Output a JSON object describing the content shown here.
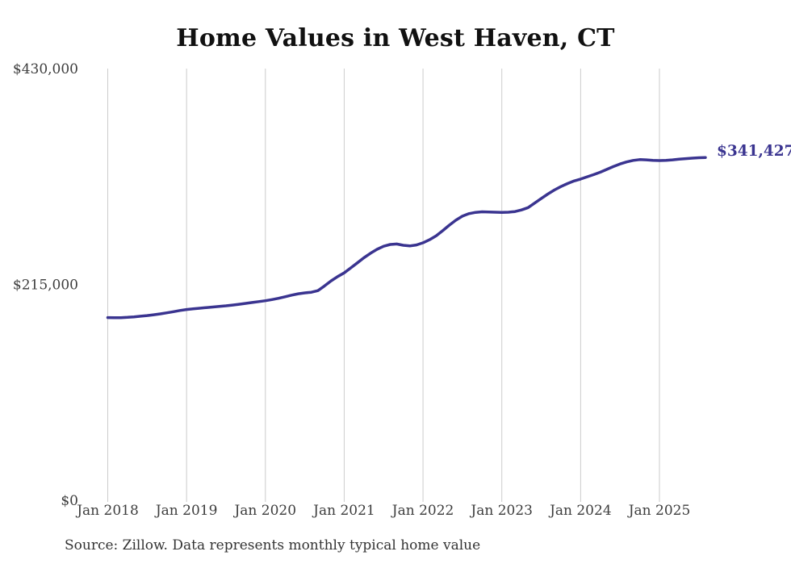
{
  "chart_data": {
    "type": "line",
    "title": "Home Values in West Haven, CT",
    "source_note": "Source: Zillow. Data represents monthly typical home value",
    "series_name": "Monthly typical home value",
    "end_label": "$341,427",
    "last_value": 341427,
    "line_color": "#3a3490",
    "grid_color": "#cccccc",
    "ylim": [
      0,
      430000
    ],
    "y_ticks": [
      {
        "label": "$430,000",
        "value": 430000
      },
      {
        "label": "$215,000",
        "value": 215000
      },
      {
        "label": "$0",
        "value": 0
      }
    ],
    "x_ticks": [
      {
        "label": "Jan 2018",
        "month_index": 0
      },
      {
        "label": "Jan 2019",
        "month_index": 12
      },
      {
        "label": "Jan 2020",
        "month_index": 24
      },
      {
        "label": "Jan 2021",
        "month_index": 36
      },
      {
        "label": "Jan 2022",
        "month_index": 48
      },
      {
        "label": "Jan 2023",
        "month_index": 60
      },
      {
        "label": "Jan 2024",
        "month_index": 72
      },
      {
        "label": "Jan 2025",
        "month_index": 84
      }
    ],
    "x": [
      "2018-01",
      "2018-02",
      "2018-03",
      "2018-04",
      "2018-05",
      "2018-06",
      "2018-07",
      "2018-08",
      "2018-09",
      "2018-10",
      "2018-11",
      "2018-12",
      "2019-01",
      "2019-02",
      "2019-03",
      "2019-04",
      "2019-05",
      "2019-06",
      "2019-07",
      "2019-08",
      "2019-09",
      "2019-10",
      "2019-11",
      "2019-12",
      "2020-01",
      "2020-02",
      "2020-03",
      "2020-04",
      "2020-05",
      "2020-06",
      "2020-07",
      "2020-08",
      "2020-09",
      "2020-10",
      "2020-11",
      "2020-12",
      "2021-01",
      "2021-02",
      "2021-03",
      "2021-04",
      "2021-05",
      "2021-06",
      "2021-07",
      "2021-08",
      "2021-09",
      "2021-10",
      "2021-11",
      "2021-12",
      "2022-01",
      "2022-02",
      "2022-03",
      "2022-04",
      "2022-05",
      "2022-06",
      "2022-07",
      "2022-08",
      "2022-09",
      "2022-10",
      "2022-11",
      "2022-12",
      "2023-01",
      "2023-02",
      "2023-03",
      "2023-04",
      "2023-05",
      "2023-06",
      "2023-07",
      "2023-08",
      "2023-09",
      "2023-10",
      "2023-11",
      "2023-12",
      "2024-01",
      "2024-02",
      "2024-03",
      "2024-04",
      "2024-05",
      "2024-06",
      "2024-07",
      "2024-08",
      "2024-09",
      "2024-10",
      "2024-11",
      "2024-12",
      "2025-01",
      "2025-02",
      "2025-03",
      "2025-04",
      "2025-05",
      "2025-06",
      "2025-07",
      "2025-08"
    ],
    "values": [
      182000,
      181800,
      181900,
      182200,
      182700,
      183300,
      184000,
      184800,
      185700,
      186700,
      187800,
      189000,
      190000,
      190700,
      191300,
      191900,
      192500,
      193100,
      193700,
      194400,
      195200,
      196100,
      197000,
      197900,
      198800,
      199900,
      201200,
      202700,
      204300,
      205700,
      206600,
      207200,
      208800,
      213500,
      218500,
      222800,
      226500,
      231500,
      236500,
      241500,
      246000,
      250000,
      253000,
      254800,
      255300,
      254000,
      253300,
      254300,
      256500,
      259500,
      263500,
      268500,
      274000,
      279000,
      283000,
      285500,
      286800,
      287300,
      287200,
      286900,
      286700,
      286900,
      287600,
      289200,
      291500,
      296000,
      300500,
      305000,
      309000,
      312500,
      315500,
      318000,
      320000,
      322200,
      324400,
      326800,
      329600,
      332400,
      335000,
      337000,
      338500,
      339300,
      339100,
      338600,
      338400,
      338600,
      339100,
      339700,
      340300,
      340800,
      341200,
      341427
    ]
  }
}
